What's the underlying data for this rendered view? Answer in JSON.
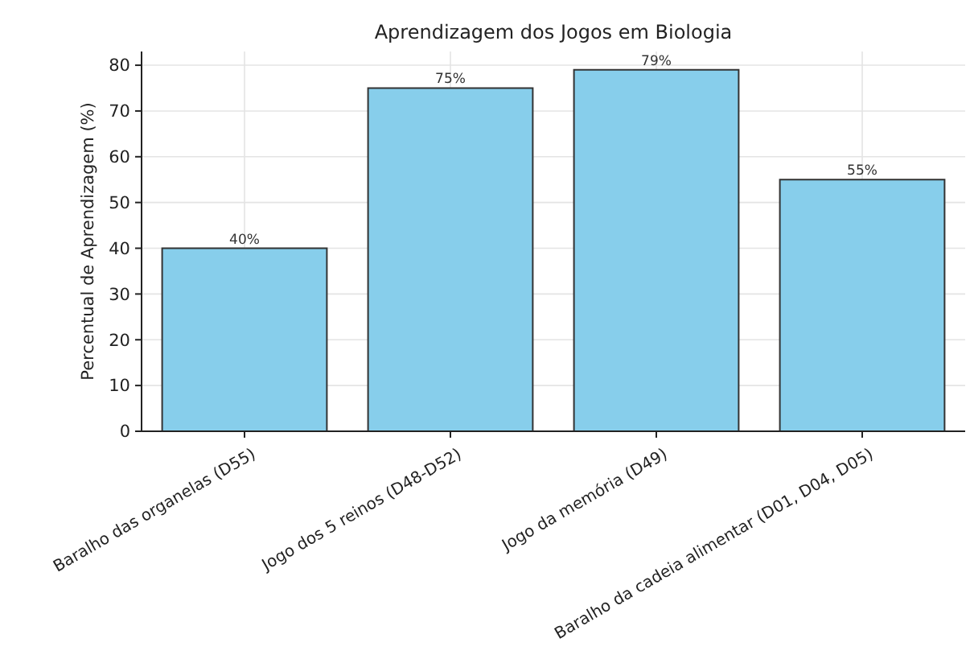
{
  "chart_data": {
    "type": "bar",
    "title": "Aprendizagem dos Jogos em Biologia",
    "ylabel": "Percentual de Aprendizagem (%)",
    "categories": [
      "Baralho das organelas (D55)",
      "Jogo dos 5 reinos (D48-D52)",
      "Jogo da memória (D49)",
      "Baralho da cadeia alimentar (D01, D04, D05)"
    ],
    "values": [
      40,
      75,
      79,
      55
    ],
    "value_labels": [
      "40%",
      "75%",
      "79%",
      "55%"
    ],
    "color": "#87ceeb",
    "ylim": [
      0,
      83
    ],
    "yticks": [
      0,
      10,
      20,
      30,
      40,
      50,
      60,
      70,
      80
    ],
    "grid": true
  }
}
